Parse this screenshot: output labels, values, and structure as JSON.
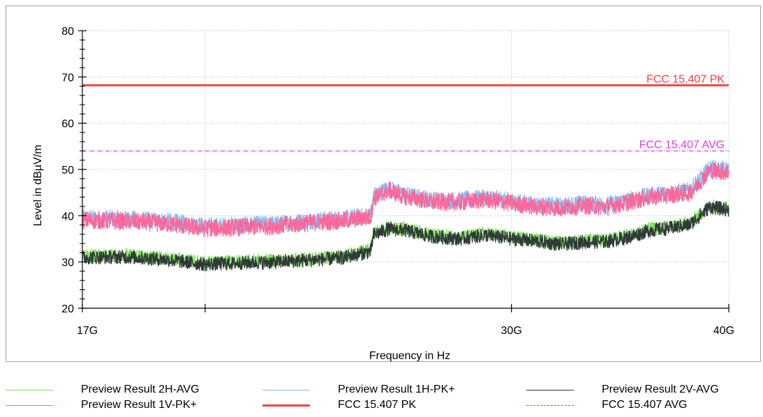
{
  "chart_data": {
    "type": "line",
    "xlabel": "Frequency in Hz",
    "ylabel": "Level in dBµV/m",
    "xscale": "log",
    "xlim": [
      17000000000,
      40000000000
    ],
    "ylim": [
      20,
      80
    ],
    "yticks": [
      20,
      30,
      40,
      50,
      60,
      70,
      80
    ],
    "xticks": [
      {
        "value": 17000000000,
        "label": "17G"
      },
      {
        "value": 20000000000,
        "label": ""
      },
      {
        "value": 30000000000,
        "label": "30G"
      },
      {
        "value": 40000000000,
        "label": "40G"
      }
    ],
    "grid": true,
    "legend_position": "bottom",
    "limit_lines": [
      {
        "name": "FCC 15.407 PK",
        "value": 68.2,
        "color": "#ee4444",
        "style": "solid"
      },
      {
        "name": "FCC 15.407 AVG",
        "value": 54.0,
        "color": "#e040e0",
        "style": "dashdot"
      }
    ],
    "series": [
      {
        "name": "Preview Result 1H-PK+",
        "color": "#80c0f0",
        "x": [
          17000000000,
          18000000000,
          19000000000,
          20000000000,
          21000000000,
          22000000000,
          23000000000,
          24000000000,
          24900000000,
          25000000000,
          25500000000,
          26000000000,
          27000000000,
          28000000000,
          29000000000,
          30000000000,
          31000000000,
          32000000000,
          33000000000,
          34000000000,
          35000000000,
          36000000000,
          37000000000,
          38000000000,
          39000000000,
          40000000000
        ],
        "y": [
          39.5,
          39.3,
          38.8,
          37.7,
          38.0,
          38.2,
          38.9,
          39.3,
          40.1,
          44.2,
          45.9,
          44.6,
          43.4,
          43.3,
          43.9,
          43.1,
          42.3,
          42.1,
          42.6,
          42.3,
          43.3,
          44.4,
          44.9,
          45.4,
          50.2,
          49.8
        ]
      },
      {
        "name": "Preview Result 1V-PK+",
        "color": "#ff6699",
        "x": [
          17000000000,
          18000000000,
          19000000000,
          20000000000,
          21000000000,
          22000000000,
          23000000000,
          24000000000,
          24900000000,
          25000000000,
          25500000000,
          26000000000,
          27000000000,
          28000000000,
          29000000000,
          30000000000,
          31000000000,
          32000000000,
          33000000000,
          34000000000,
          35000000000,
          36000000000,
          37000000000,
          38000000000,
          39000000000,
          40000000000
        ],
        "y": [
          39.0,
          38.8,
          38.3,
          37.2,
          37.5,
          37.8,
          38.5,
          38.9,
          39.7,
          43.8,
          45.5,
          44.2,
          43.0,
          42.9,
          43.5,
          42.7,
          41.9,
          41.7,
          42.2,
          41.9,
          42.9,
          44.0,
          44.5,
          45.0,
          49.8,
          49.4
        ]
      },
      {
        "name": "Preview Result 2H-AVG",
        "color": "#80e060",
        "x": [
          17000000000,
          18000000000,
          19000000000,
          20000000000,
          21000000000,
          22000000000,
          23000000000,
          24000000000,
          24900000000,
          25000000000,
          25500000000,
          26000000000,
          27000000000,
          28000000000,
          29000000000,
          30000000000,
          31000000000,
          32000000000,
          33000000000,
          34000000000,
          35000000000,
          36000000000,
          37000000000,
          38000000000,
          39000000000,
          40000000000
        ],
        "y": [
          31.3,
          31.4,
          30.8,
          29.8,
          30.1,
          30.3,
          30.7,
          31.2,
          32.6,
          36.2,
          37.4,
          37.2,
          35.8,
          35.3,
          36.1,
          35.3,
          34.8,
          34.1,
          34.6,
          34.7,
          35.6,
          37.1,
          37.6,
          38.4,
          42.2,
          41.6
        ]
      },
      {
        "name": "Preview Result 2V-AVG",
        "color": "#303838",
        "x": [
          17000000000,
          18000000000,
          19000000000,
          20000000000,
          21000000000,
          22000000000,
          23000000000,
          24000000000,
          24900000000,
          25000000000,
          25500000000,
          26000000000,
          27000000000,
          28000000000,
          29000000000,
          30000000000,
          31000000000,
          32000000000,
          33000000000,
          34000000000,
          35000000000,
          36000000000,
          37000000000,
          38000000000,
          39000000000,
          40000000000
        ],
        "y": [
          31.0,
          31.1,
          30.5,
          29.5,
          29.8,
          30.0,
          30.4,
          30.9,
          32.3,
          35.9,
          37.1,
          36.9,
          35.5,
          35.0,
          35.8,
          35.0,
          34.5,
          33.8,
          34.3,
          34.4,
          35.3,
          36.8,
          37.3,
          38.1,
          41.9,
          41.3
        ]
      }
    ]
  },
  "legend": {
    "items": [
      {
        "label": "Preview Result 2H-AVG",
        "color": "#80e060",
        "style": "solid",
        "width": 1.5
      },
      {
        "label": "Preview Result 1H-PK+",
        "color": "#80c0f0",
        "style": "solid",
        "width": 1.5
      },
      {
        "label": "Preview Result 2V-AVG",
        "color": "#303838",
        "style": "solid",
        "width": 1.5
      },
      {
        "label": "Preview Result 1V-PK+",
        "color": "#ff6699",
        "style": "solid",
        "width": 1.5
      },
      {
        "label": "FCC 15.407 PK",
        "color": "#ee4444",
        "style": "solid",
        "width": 3
      },
      {
        "label": "FCC 15.407 AVG",
        "color": "#e040e0",
        "style": "dashdot",
        "width": 1
      }
    ]
  }
}
